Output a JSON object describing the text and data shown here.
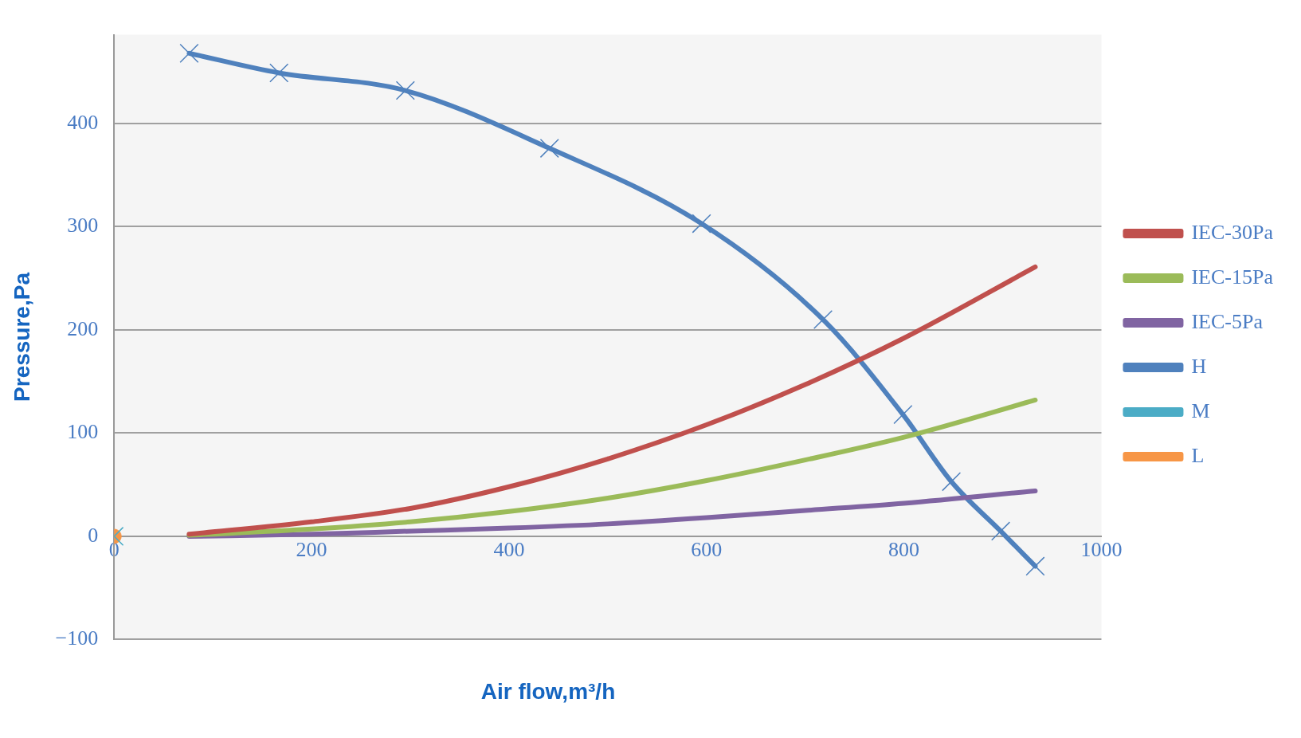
{
  "chart_data": {
    "type": "line",
    "xlabel": "Air flow,m³/h",
    "ylabel": "Pressure,Pa",
    "xlim": [
      0,
      1000
    ],
    "ylim": [
      -100,
      486
    ],
    "xticks": [
      0,
      200,
      400,
      600,
      800,
      1000
    ],
    "yticks": [
      -100,
      0,
      100,
      200,
      300,
      400
    ],
    "grid": "y",
    "legend": "right",
    "series": [
      {
        "name": "IEC-30Pa",
        "color": "#c0504d",
        "marker": "none",
        "x": [
          76,
          200,
          300,
          400,
          500,
          600,
          700,
          800,
          933
        ],
        "values": [
          2,
          14,
          27,
          48,
          75,
          108,
          147,
          192,
          261
        ]
      },
      {
        "name": "IEC-15Pa",
        "color": "#9bbb59",
        "marker": "none",
        "x": [
          76,
          200,
          300,
          400,
          500,
          600,
          700,
          800,
          933
        ],
        "values": [
          1,
          7,
          14,
          24,
          37,
          54,
          74,
          96,
          132
        ]
      },
      {
        "name": "IEC-5Pa",
        "color": "#8064a2",
        "marker": "none",
        "x": [
          76,
          200,
          300,
          400,
          500,
          600,
          700,
          800,
          933
        ],
        "values": [
          0,
          2,
          5,
          8,
          12,
          18,
          25,
          32,
          44
        ]
      },
      {
        "name": "H",
        "color": "#4f81bd",
        "marker": "cross",
        "x": [
          76,
          167,
          295,
          441,
          595,
          718,
          799,
          848,
          898,
          933
        ],
        "values": [
          468,
          449,
          432,
          376,
          303,
          210,
          118,
          53,
          5,
          -29
        ]
      },
      {
        "name": "M",
        "color": "#4bacc6",
        "marker": "cross",
        "x": [
          0
        ],
        "values": [
          0
        ]
      },
      {
        "name": "L",
        "color": "#f79646",
        "marker": "circle",
        "x": [
          0
        ],
        "values": [
          0
        ]
      }
    ]
  }
}
